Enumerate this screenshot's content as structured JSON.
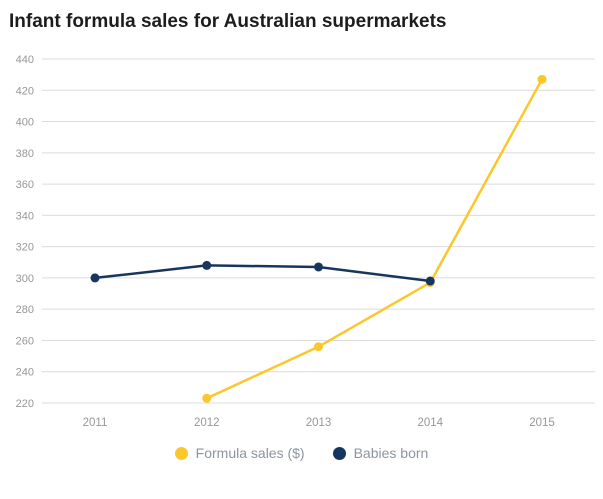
{
  "title": "Infant formula sales for Australian supermarkets",
  "chart_data": {
    "type": "line",
    "x": [
      "2011",
      "2012",
      "2013",
      "2014",
      "2015"
    ],
    "series": [
      {
        "name": "Formula sales ($)",
        "color": "#FCC72C",
        "values": [
          null,
          223,
          256,
          297,
          427
        ]
      },
      {
        "name": "Babies born",
        "color": "#17365D",
        "values": [
          300,
          308,
          307,
          298,
          null
        ]
      }
    ],
    "ylim": [
      220,
      440
    ],
    "ytick_step": 20,
    "grid": true,
    "legend_position": "bottom-center",
    "axis_label_color": "#979797",
    "gridline_color": "#dcdcdc"
  }
}
